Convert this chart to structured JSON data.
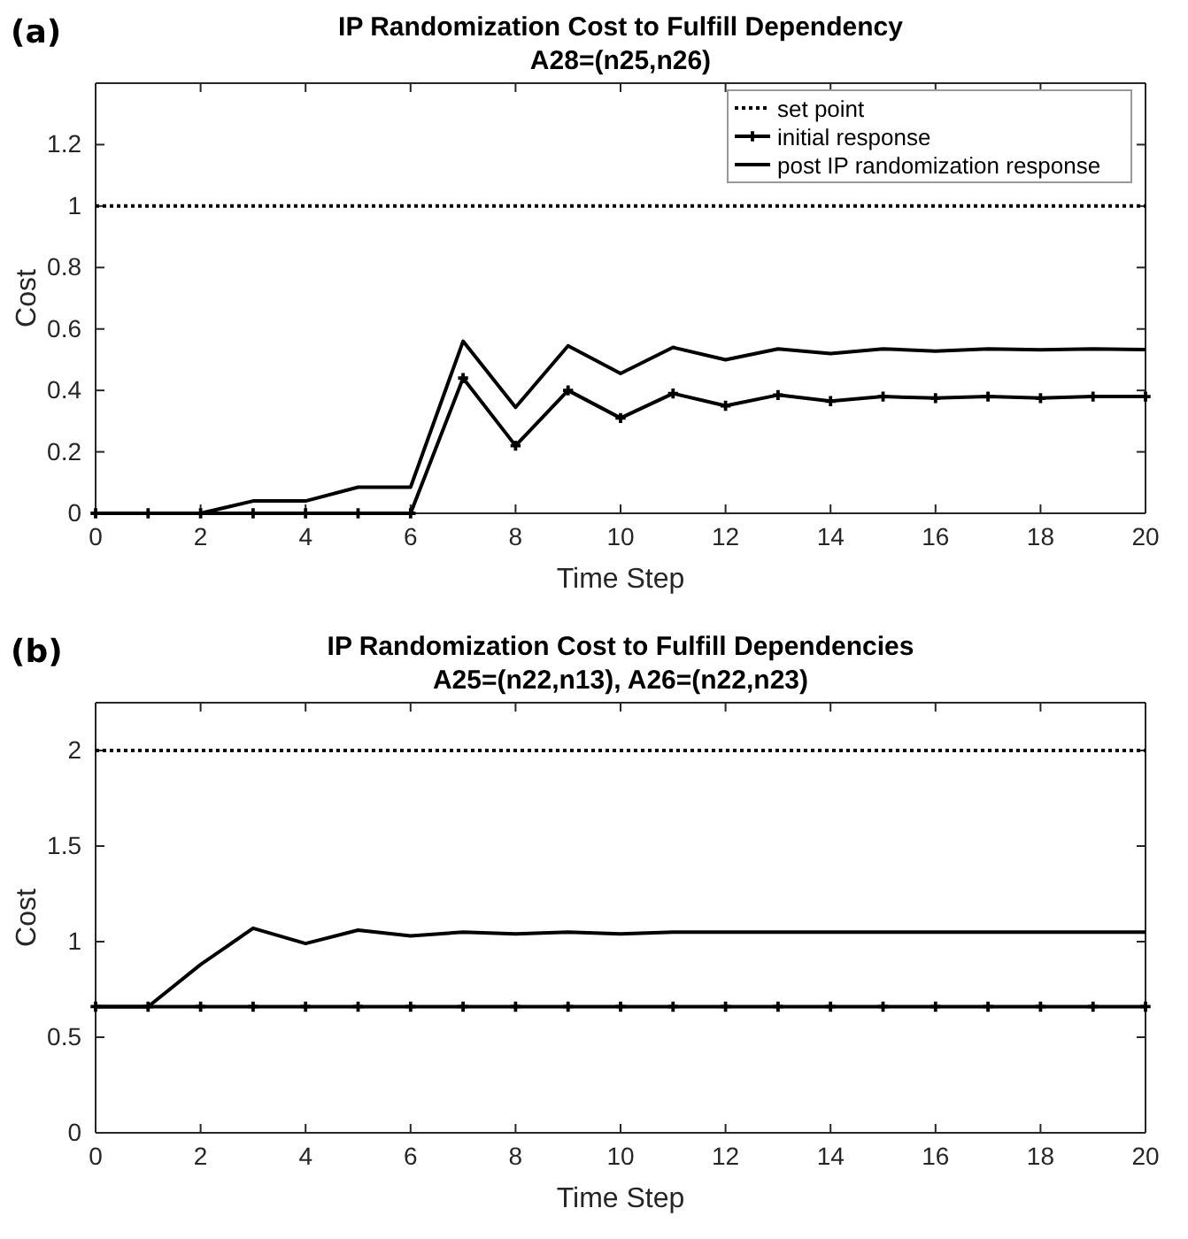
{
  "chart_data": [
    {
      "type": "line",
      "title": "IP Randomization Cost to Fulfill Dependency",
      "subtitle": "A28=(n25,n26)",
      "xlabel": "Time Step",
      "ylabel": "Cost",
      "annotations": [
        "(a)"
      ],
      "x": [
        0,
        1,
        2,
        3,
        4,
        5,
        6,
        7,
        8,
        9,
        10,
        11,
        12,
        13,
        14,
        15,
        16,
        17,
        18,
        19,
        20
      ],
      "xlim": [
        0,
        20
      ],
      "xticks": [
        0,
        2,
        4,
        6,
        8,
        10,
        12,
        14,
        16,
        18,
        20
      ],
      "ylim": [
        0,
        1.4
      ],
      "yticks": [
        0,
        0.2,
        0.4,
        0.6,
        0.8,
        1,
        1.2
      ],
      "grid": false,
      "legend": "top right",
      "series": [
        {
          "name": "set point",
          "color": "#000000",
          "line_style": "dotted",
          "marker": "none",
          "values": [
            1,
            1,
            1,
            1,
            1,
            1,
            1,
            1,
            1,
            1,
            1,
            1,
            1,
            1,
            1,
            1,
            1,
            1,
            1,
            1,
            1
          ]
        },
        {
          "name": "initial response",
          "color": "#000000",
          "line_style": "solid",
          "marker": "cross",
          "values": [
            0,
            0,
            0,
            0,
            0,
            0,
            0,
            0.44,
            0.22,
            0.4,
            0.31,
            0.39,
            0.35,
            0.385,
            0.365,
            0.38,
            0.375,
            0.38,
            0.375,
            0.38,
            0.38
          ]
        },
        {
          "name": "post IP randomization response",
          "color": "#000000",
          "line_style": "solid",
          "marker": "none",
          "values": [
            0,
            0,
            0,
            0.04,
            0.04,
            0.085,
            0.085,
            0.56,
            0.345,
            0.545,
            0.455,
            0.54,
            0.5,
            0.535,
            0.52,
            0.535,
            0.528,
            0.535,
            0.532,
            0.535,
            0.533
          ]
        }
      ]
    },
    {
      "type": "line",
      "title": "IP Randomization Cost to Fulfill Dependencies",
      "subtitle": "A25=(n22,n13), A26=(n22,n23)",
      "xlabel": "Time Step",
      "ylabel": "Cost",
      "annotations": [
        "(b)"
      ],
      "x": [
        0,
        1,
        2,
        3,
        4,
        5,
        6,
        7,
        8,
        9,
        10,
        11,
        12,
        13,
        14,
        15,
        16,
        17,
        18,
        19,
        20
      ],
      "xlim": [
        0,
        20
      ],
      "xticks": [
        0,
        2,
        4,
        6,
        8,
        10,
        12,
        14,
        16,
        18,
        20
      ],
      "ylim": [
        0,
        2.25
      ],
      "yticks": [
        0,
        0.5,
        1,
        1.5,
        2
      ],
      "grid": false,
      "series": [
        {
          "color": "#000000",
          "line_style": "dotted",
          "marker": "none",
          "values": [
            2,
            2,
            2,
            2,
            2,
            2,
            2,
            2,
            2,
            2,
            2,
            2,
            2,
            2,
            2,
            2,
            2,
            2,
            2,
            2,
            2
          ]
        },
        {
          "color": "#000000",
          "line_style": "solid",
          "marker": "cross",
          "values": [
            0.66,
            0.66,
            0.66,
            0.66,
            0.66,
            0.66,
            0.66,
            0.66,
            0.66,
            0.66,
            0.66,
            0.66,
            0.66,
            0.66,
            0.66,
            0.66,
            0.66,
            0.66,
            0.66,
            0.66,
            0.66
          ]
        },
        {
          "color": "#000000",
          "line_style": "solid",
          "marker": "none",
          "values": [
            0.66,
            0.66,
            0.88,
            1.07,
            0.99,
            1.06,
            1.03,
            1.05,
            1.04,
            1.05,
            1.04,
            1.05,
            1.05,
            1.05,
            1.05,
            1.05,
            1.05,
            1.05,
            1.05,
            1.05,
            1.05
          ]
        }
      ]
    }
  ]
}
